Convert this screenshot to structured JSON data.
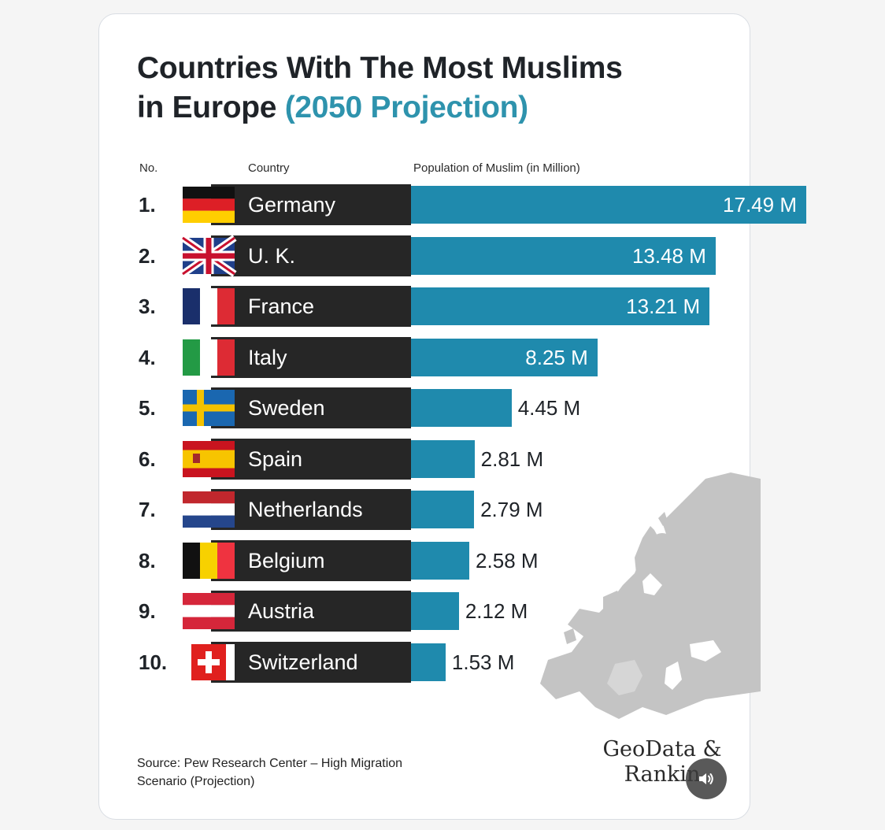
{
  "chart_data": {
    "type": "bar",
    "title_main": "Countries With The Most Muslims",
    "title_line2": "in Europe",
    "title_highlight": "(2050 Projection)",
    "headers": {
      "rank": "No.",
      "country": "Country",
      "value": "Population of Muslim (in Million)"
    },
    "unit": "M",
    "xlim": [
      0,
      17.49
    ],
    "rows": [
      {
        "rank": "1.",
        "country": "Germany",
        "value": 17.49,
        "label": "17.49 M",
        "flag": "germany-flag"
      },
      {
        "rank": "2.",
        "country": "U. K.",
        "value": 13.48,
        "label": "13.48 M",
        "flag": "uk-flag"
      },
      {
        "rank": "3.",
        "country": "France",
        "value": 13.21,
        "label": "13.21 M",
        "flag": "france-flag"
      },
      {
        "rank": "4.",
        "country": "Italy",
        "value": 8.25,
        "label": "8.25 M",
        "flag": "italy-flag"
      },
      {
        "rank": "5.",
        "country": "Sweden",
        "value": 4.45,
        "label": "4.45 M",
        "flag": "sweden-flag"
      },
      {
        "rank": "6.",
        "country": "Spain",
        "value": 2.81,
        "label": "2.81 M",
        "flag": "spain-flag"
      },
      {
        "rank": "7.",
        "country": "Netherlands",
        "value": 2.79,
        "label": "2.79 M",
        "flag": "netherlands-flag"
      },
      {
        "rank": "8.",
        "country": "Belgium",
        "value": 2.58,
        "label": "2.58 M",
        "flag": "belgium-flag"
      },
      {
        "rank": "9.",
        "country": "Austria",
        "value": 2.12,
        "label": "2.12 M",
        "flag": "austria-flag"
      },
      {
        "rank": "10.",
        "country": "Switzerland",
        "value": 1.53,
        "label": "1.53 M",
        "flag": "switzerland-flag"
      }
    ],
    "bar_color": "#1f8aad",
    "highlight_color": "#2e93ad"
  },
  "source_text": "Source: Pew Research Center – High Migration Scenario (Projection)",
  "brand": {
    "line1": "GeoData &",
    "line2": "Rankin"
  },
  "sound_button": {
    "icon": "speaker-icon"
  }
}
